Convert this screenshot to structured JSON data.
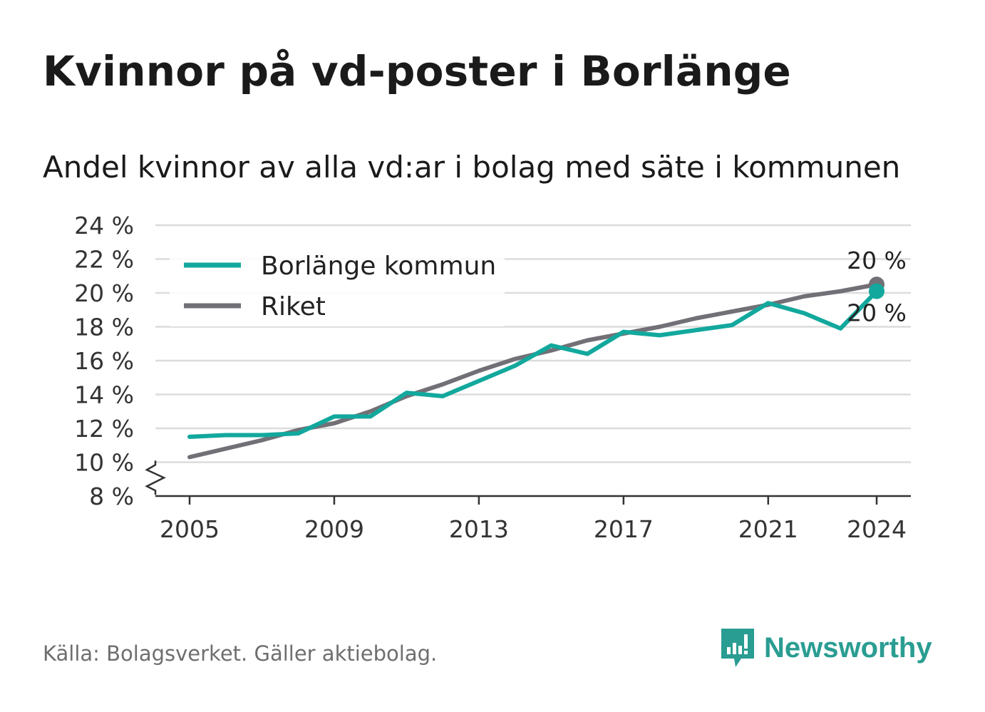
{
  "title": "Kvinnor på vd-poster i Borlänge",
  "subtitle": "Andel kvinnor av alla vd:ar i bolag med säte i kommunen",
  "source": "Källa: Bolagsverket. Gäller aktiebolag.",
  "brand": {
    "name": "Newsworthy",
    "icon": "newsworthy-logo-icon",
    "color": "#2a9d92"
  },
  "chart_data": {
    "type": "line",
    "x": [
      2005,
      2006,
      2007,
      2008,
      2009,
      2010,
      2011,
      2012,
      2013,
      2014,
      2015,
      2016,
      2017,
      2018,
      2019,
      2020,
      2021,
      2022,
      2023,
      2024
    ],
    "series": [
      {
        "name": "Borlänge kommun",
        "color": "#12a89d",
        "values": [
          11.5,
          11.6,
          11.6,
          11.7,
          12.7,
          12.7,
          14.1,
          13.9,
          14.8,
          15.7,
          16.9,
          16.4,
          17.7,
          17.5,
          17.8,
          18.1,
          19.4,
          18.8,
          17.9,
          20.1
        ]
      },
      {
        "name": "Riket",
        "color": "#727076",
        "values": [
          10.3,
          10.8,
          11.3,
          11.9,
          12.3,
          13.0,
          13.9,
          14.6,
          15.4,
          16.1,
          16.6,
          17.2,
          17.6,
          18.0,
          18.5,
          18.9,
          19.3,
          19.8,
          20.1,
          20.5
        ]
      }
    ],
    "xticks": [
      "2005",
      "2009",
      "2013",
      "2017",
      "2021",
      "2024"
    ],
    "yticks": [
      "8 %",
      "10 %",
      "12 %",
      "14 %",
      "16 %",
      "18 %",
      "20 %",
      "22 %",
      "24 %"
    ],
    "ylim": [
      8,
      24
    ],
    "xlim": [
      2005,
      2024
    ],
    "axis_break": true,
    "grid": true,
    "legend_position": "top-left",
    "end_labels": {
      "Riket": "20 %",
      "Borlänge kommun": "20 %"
    }
  }
}
